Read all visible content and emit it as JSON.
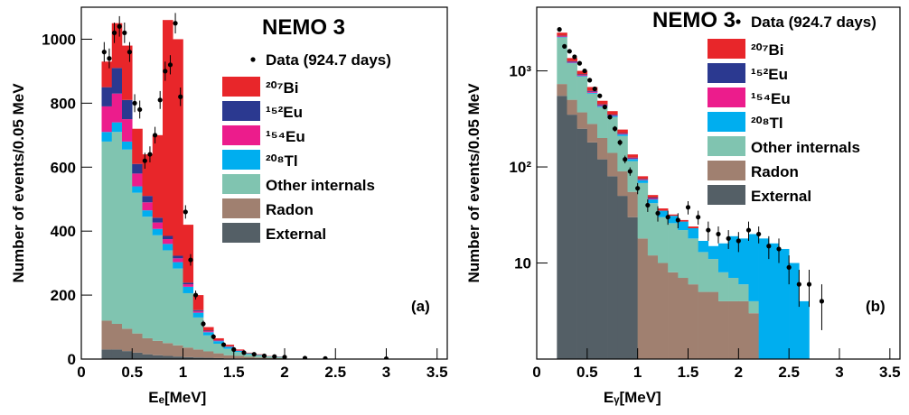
{
  "chart_data": [
    {
      "type": "histogram",
      "stacked": true,
      "log_y": false,
      "title": "NEMO 3",
      "annotation": "(a)",
      "xlabel": "Eₑ[MeV]",
      "ylabel": "Number of events/0.05 MeV",
      "xlim": [
        0,
        3.6
      ],
      "xticks": [
        0,
        0.5,
        1,
        1.5,
        2,
        2.5,
        3,
        3.5
      ],
      "ylim": [
        0,
        1100
      ],
      "yticks": [
        0,
        200,
        400,
        600,
        800,
        1000
      ],
      "bins": [
        0.2,
        0.3,
        0.4,
        0.5,
        0.6,
        0.7,
        0.8,
        0.9,
        1.0,
        1.1,
        1.2,
        1.3,
        1.4,
        1.5,
        1.6,
        1.7,
        1.8,
        1.9,
        2.0
      ],
      "data": {
        "name": "Data (924.7 days)",
        "color": "#000000",
        "x": [
          0.225,
          0.275,
          0.325,
          0.375,
          0.425,
          0.475,
          0.525,
          0.575,
          0.625,
          0.675,
          0.725,
          0.775,
          0.825,
          0.875,
          0.925,
          0.975,
          1.025,
          1.075,
          1.125,
          1.2,
          1.3,
          1.4,
          1.5,
          1.6,
          1.7,
          1.8,
          1.9,
          2.0,
          2.2,
          2.4,
          3.0
        ],
        "values": [
          960,
          940,
          1020,
          1040,
          1020,
          960,
          800,
          780,
          620,
          640,
          700,
          810,
          900,
          920,
          1050,
          820,
          460,
          310,
          200,
          110,
          70,
          45,
          30,
          20,
          15,
          10,
          8,
          6,
          3,
          2,
          1
        ],
        "errors": [
          31,
          31,
          32,
          32,
          32,
          31,
          28,
          28,
          25,
          25,
          26,
          28,
          30,
          30,
          32,
          29,
          21,
          18,
          14,
          10,
          8,
          7,
          5,
          4,
          4,
          3,
          3,
          2,
          2,
          1,
          1
        ]
      },
      "series": [
        {
          "name": "²⁰⁷Bi",
          "color": "#e8262a",
          "values": [
            80,
            140,
            170,
            110,
            130,
            258,
            675,
            677,
            181,
            47,
            11,
            6,
            5,
            3,
            2,
            2,
            1,
            1
          ]
        },
        {
          "name": "¹⁵²Eu",
          "color": "#2b3990",
          "values": [
            60,
            80,
            60,
            30,
            20,
            15,
            10,
            8,
            5,
            3,
            2,
            1,
            1,
            0,
            0,
            0,
            0,
            0
          ]
        },
        {
          "name": "¹⁵⁴Eu",
          "color": "#ec1c8c",
          "values": [
            80,
            90,
            70,
            40,
            25,
            20,
            15,
            12,
            8,
            5,
            3,
            2,
            1,
            1,
            0,
            0,
            0,
            0
          ]
        },
        {
          "name": "²⁰⁸Tl",
          "color": "#00aeef",
          "values": [
            30,
            30,
            25,
            20,
            20,
            20,
            20,
            20,
            20,
            15,
            10,
            8,
            6,
            4,
            3,
            2,
            1,
            1
          ]
        },
        {
          "name": "Other internals",
          "color": "#80c4b0",
          "values": [
            560,
            600,
            560,
            440,
            380,
            330,
            290,
            240,
            170,
            100,
            50,
            30,
            20,
            12,
            8,
            6,
            4,
            3
          ]
        },
        {
          "name": "Radon",
          "color": "#a08070",
          "values": [
            90,
            80,
            70,
            60,
            50,
            45,
            40,
            35,
            30,
            25,
            20,
            15,
            10,
            8,
            6,
            4,
            3,
            2
          ]
        },
        {
          "name": "External",
          "color": "#545f66",
          "values": [
            30,
            30,
            25,
            20,
            15,
            12,
            10,
            8,
            6,
            5,
            4,
            3,
            2,
            2,
            1,
            1,
            1,
            1
          ]
        }
      ]
    },
    {
      "type": "histogram",
      "stacked": true,
      "log_y": true,
      "title": "NEMO 3",
      "annotation": "(b)",
      "xlabel": "Eᵧ[MeV]",
      "ylabel": "Number of events/0.05 MeV",
      "xlim": [
        0,
        3.6
      ],
      "xticks": [
        0,
        0.5,
        1,
        1.5,
        2,
        2.5,
        3,
        3.5
      ],
      "ylim": [
        1,
        4600
      ],
      "yticks": [
        10,
        {
          "value": 100,
          "label": "10²"
        },
        {
          "value": 1000,
          "label": "10³"
        }
      ],
      "bins": [
        0.2,
        0.3,
        0.4,
        0.5,
        0.6,
        0.7,
        0.8,
        0.9,
        1.0,
        1.1,
        1.2,
        1.3,
        1.4,
        1.5,
        1.6,
        1.7,
        1.8,
        1.9,
        2.0,
        2.1,
        2.2,
        2.3,
        2.4,
        2.5,
        2.6,
        2.7,
        2.8
      ],
      "data": {
        "name": "Data (924.7 days)",
        "color": "#000000",
        "x": [
          0.225,
          0.275,
          0.325,
          0.375,
          0.425,
          0.475,
          0.525,
          0.575,
          0.625,
          0.675,
          0.725,
          0.775,
          0.825,
          0.875,
          0.925,
          1.0,
          1.1,
          1.2,
          1.3,
          1.4,
          1.5,
          1.6,
          1.7,
          1.8,
          1.9,
          2.0,
          2.1,
          2.2,
          2.3,
          2.4,
          2.5,
          2.6,
          2.7,
          2.825
        ],
        "values": [
          2700,
          1800,
          1600,
          1400,
          1200,
          1000,
          800,
          650,
          550,
          420,
          330,
          250,
          180,
          120,
          90,
          60,
          40,
          33,
          30,
          28,
          38,
          30,
          22,
          20,
          18,
          17,
          22,
          20,
          15,
          14,
          9,
          6,
          6,
          4
        ],
        "errors": [
          50,
          42,
          40,
          37,
          35,
          32,
          28,
          25,
          23,
          20,
          18,
          16,
          13,
          11,
          9,
          8,
          6,
          6,
          5,
          5,
          6,
          5,
          5,
          4,
          4,
          4,
          5,
          4,
          4,
          4,
          3,
          2.5,
          2.5,
          2
        ]
      },
      "series": [
        {
          "name": "²⁰⁷Bi",
          "color": "#e8262a",
          "values": [
            180,
            100,
            80,
            60,
            40,
            30,
            20,
            10,
            5,
            3,
            2,
            1,
            1,
            1,
            0,
            0,
            0,
            0,
            0,
            0,
            0,
            0,
            0,
            0,
            0,
            0
          ]
        },
        {
          "name": "¹⁵²Eu",
          "color": "#2b3990",
          "values": [
            30,
            20,
            15,
            12,
            8,
            5,
            3,
            2,
            1,
            1,
            0,
            0,
            0,
            0,
            0,
            0,
            0,
            0,
            0,
            0,
            0,
            0,
            0,
            0,
            0,
            0
          ]
        },
        {
          "name": "¹⁵⁴Eu",
          "color": "#ec1c8c",
          "values": [
            40,
            25,
            20,
            15,
            10,
            6,
            4,
            2,
            1,
            1,
            0,
            0,
            0,
            0,
            0,
            0,
            0,
            0,
            0,
            0,
            0,
            0,
            0,
            0,
            0,
            0
          ]
        },
        {
          "name": "²⁰⁸Tl",
          "color": "#00aeef",
          "values": [
            20,
            15,
            15,
            12,
            10,
            10,
            8,
            6,
            5,
            4,
            5,
            5,
            5,
            5,
            4,
            4,
            8,
            12,
            12,
            16,
            18,
            16,
            14,
            10,
            4,
            0
          ]
        },
        {
          "name": "Other internals",
          "color": "#80c4b0",
          "values": [
            1500,
            700,
            500,
            300,
            220,
            190,
            120,
            60,
            50,
            30,
            20,
            18,
            15,
            12,
            8,
            6,
            4,
            3,
            2,
            1,
            0,
            0,
            0,
            0,
            0,
            0
          ]
        },
        {
          "name": "Radon",
          "color": "#a08070",
          "values": [
            180,
            150,
            120,
            100,
            80,
            60,
            40,
            25,
            18,
            12,
            10,
            8,
            7,
            6,
            5,
            5,
            4,
            4,
            4,
            3,
            0,
            0,
            0,
            0,
            0,
            0
          ]
        },
        {
          "name": "External",
          "color": "#545f66",
          "values": [
            550,
            350,
            250,
            180,
            120,
            80,
            50,
            30,
            0,
            0,
            0,
            0,
            0,
            0,
            0,
            0,
            0,
            0,
            0,
            0,
            0,
            0,
            0,
            0,
            0,
            0
          ]
        }
      ]
    }
  ]
}
